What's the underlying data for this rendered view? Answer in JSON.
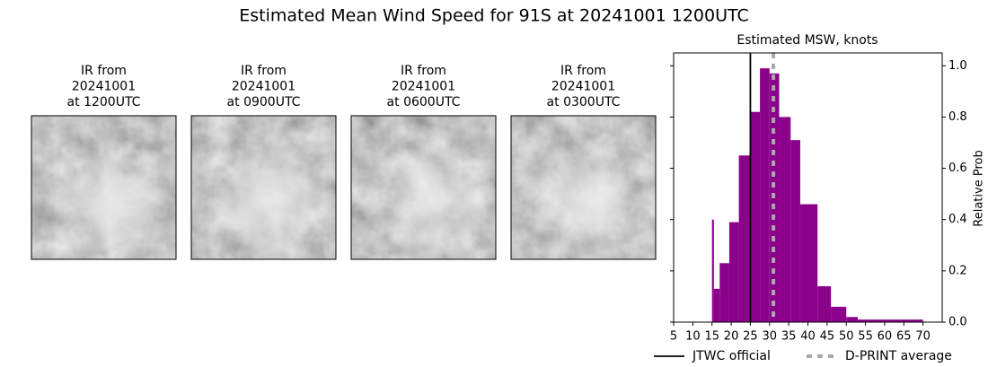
{
  "panels": [
    {
      "lines": [
        "IR from",
        "20241001",
        "at 1200UTC"
      ]
    },
    {
      "lines": [
        "IR from",
        "20241001",
        "at 0900UTC"
      ]
    },
    {
      "lines": [
        "IR from",
        "20241001",
        "at 0600UTC"
      ]
    },
    {
      "lines": [
        "IR from",
        "20241001",
        "at 0300UTC"
      ]
    }
  ],
  "chart_data": {
    "type": "histogram",
    "title": "Estimated Mean Wind Speed for 91S at 20241001 1200UTC",
    "subtitle": "Estimated MSW, knots",
    "y_label": "Relative Prob",
    "y_axis_side": "right",
    "color": "#8b008b",
    "bins": [
      15,
      15.5,
      17,
      19.5,
      22,
      25,
      27.5,
      30,
      32.5,
      35.5,
      38,
      42.5,
      46,
      50,
      53,
      70
    ],
    "values": [
      0.4,
      0.13,
      0.23,
      0.39,
      0.65,
      0.82,
      0.99,
      0.97,
      0.8,
      0.71,
      0.46,
      0.14,
      0.06,
      0.02,
      0.01
    ],
    "reference_lines": [
      {
        "name": "JTWC official",
        "value": 25,
        "color": "#000000",
        "style": "solid"
      },
      {
        "name": "D-PRINT average",
        "value": 31,
        "color": "#aaaaaa",
        "style": "dotted"
      }
    ],
    "xlim": [
      5,
      75
    ],
    "xticks": [
      5,
      10,
      15,
      20,
      25,
      30,
      35,
      40,
      45,
      50,
      55,
      60,
      65,
      70
    ],
    "ylim": [
      0,
      1.05
    ],
    "yticks": [
      {
        "value": 0,
        "label": "0.0"
      },
      {
        "value": 0.2,
        "label": "0.2"
      },
      {
        "value": 0.4,
        "label": "0.4"
      },
      {
        "value": 0.6,
        "label": "0.6"
      },
      {
        "value": 0.8,
        "label": "0.8"
      },
      {
        "value": 1,
        "label": "1.0"
      }
    ]
  }
}
